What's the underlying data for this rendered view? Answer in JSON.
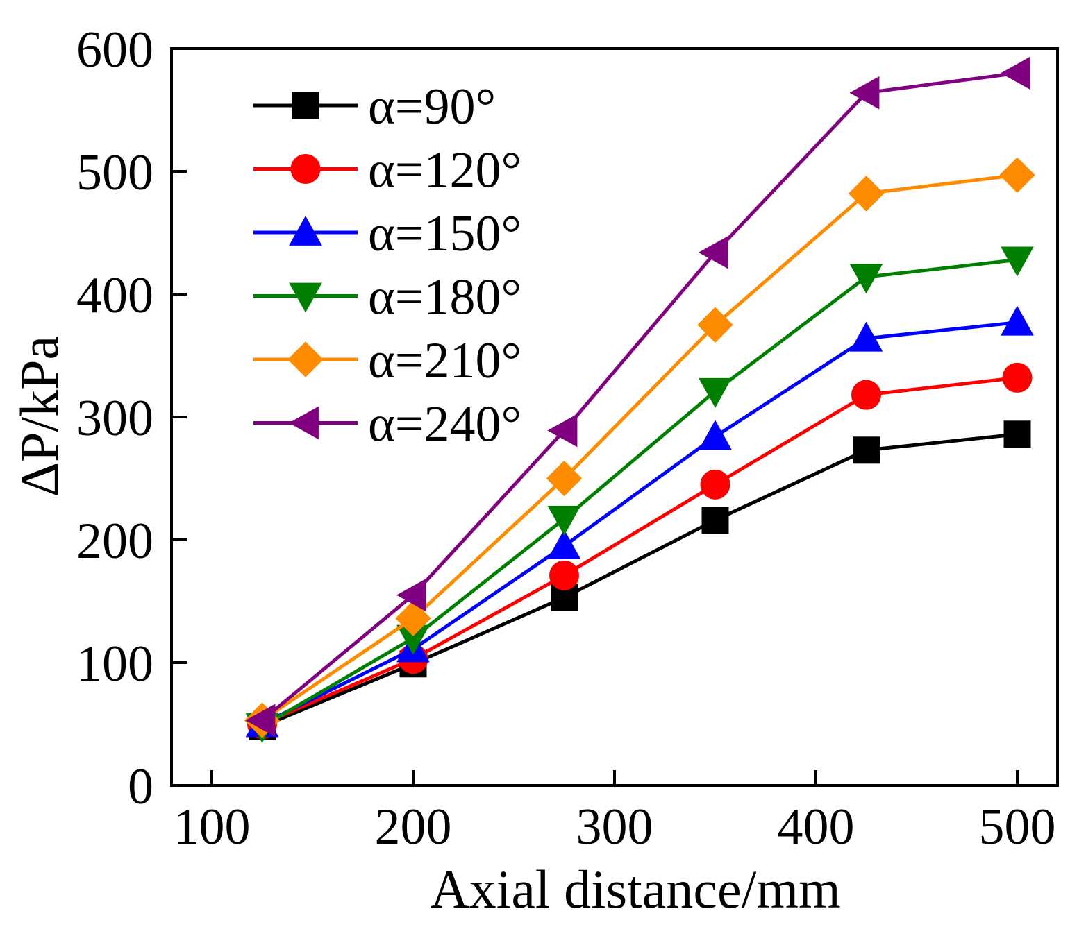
{
  "chart_data": {
    "type": "line",
    "xlabel": "Axial distance/mm",
    "ylabel": "ΔP/kPa",
    "xlim": [
      80,
      520
    ],
    "ylim": [
      0,
      600
    ],
    "xticks": [
      100,
      200,
      300,
      400,
      500
    ],
    "yticks": [
      0,
      100,
      200,
      300,
      400,
      500,
      600
    ],
    "grid": false,
    "legend_position": "top-left",
    "x": [
      125,
      200,
      275,
      350,
      425,
      500
    ],
    "series": [
      {
        "name": "α=90°",
        "color": "#000000",
        "marker": "square",
        "values": [
          48,
          99,
          153,
          216,
          273,
          286
        ]
      },
      {
        "name": "α=120°",
        "color": "#ff0000",
        "marker": "circle",
        "values": [
          50,
          103,
          171,
          245,
          318,
          332
        ]
      },
      {
        "name": "α=150°",
        "color": "#0000ff",
        "marker": "triangle-up",
        "values": [
          50,
          111,
          195,
          284,
          364,
          377
        ]
      },
      {
        "name": "α=180°",
        "color": "#008000",
        "marker": "triangle-down",
        "values": [
          48,
          120,
          217,
          321,
          414,
          428
        ]
      },
      {
        "name": "α=210°",
        "color": "#ff8c00",
        "marker": "diamond",
        "values": [
          53,
          136,
          250,
          375,
          482,
          497
        ]
      },
      {
        "name": "α=240°",
        "color": "#800080",
        "marker": "triangle-left",
        "values": [
          53,
          155,
          289,
          434,
          564,
          580
        ]
      }
    ]
  }
}
